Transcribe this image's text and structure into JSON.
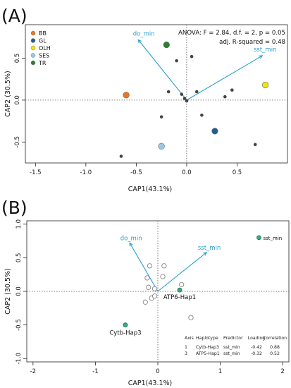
{
  "chart_data": [
    {
      "panel_label": "(A)",
      "type": "scatter",
      "xlabel": "CAP1(43.1%)",
      "ylabel": "CAP2 (30.5%)",
      "xlim": [
        -1.6,
        1.0
      ],
      "ylim": [
        -0.75,
        0.9
      ],
      "xticks": [
        -1.5,
        -1.0,
        -0.5,
        0.0,
        0.5
      ],
      "xtick_labels": [
        "-1.5",
        "-1.0",
        "-0.5",
        "0.0",
        "0.5"
      ],
      "yticks": [
        -0.5,
        0.0,
        0.5
      ],
      "ytick_labels": [
        "-0.5",
        "0.0",
        "0.5"
      ],
      "grid": false,
      "reference_lines": {
        "x": 0,
        "y": 0,
        "style": "dotted"
      },
      "annotation": [
        "ANOVA: F = 2.84, d.f. = 2, p = 0.05",
        "adj. R-squared = 0.48"
      ],
      "legend": {
        "position": "top-left",
        "entries": [
          {
            "label": "BB",
            "color": "#e87722"
          },
          {
            "label": "GL",
            "color": "#1f5f8b"
          },
          {
            "label": "OLH",
            "color": "#f3e600"
          },
          {
            "label": "SES",
            "color": "#9ec9de"
          },
          {
            "label": "TR",
            "color": "#2e7d32"
          }
        ]
      },
      "group_points": [
        {
          "group": "BB",
          "x": -0.6,
          "y": 0.06,
          "color": "#e87722"
        },
        {
          "group": "GL",
          "x": 0.28,
          "y": -0.37,
          "color": "#1f5f8b"
        },
        {
          "group": "OLH",
          "x": 0.78,
          "y": 0.18,
          "color": "#f3e600"
        },
        {
          "group": "SES",
          "x": -0.25,
          "y": -0.55,
          "color": "#9ec9de"
        },
        {
          "group": "TR",
          "x": -0.2,
          "y": 0.66,
          "color": "#2e7d32"
        }
      ],
      "samples": [
        {
          "x": -0.1,
          "y": 0.47
        },
        {
          "x": 0.05,
          "y": 0.52
        },
        {
          "x": -0.18,
          "y": 0.1
        },
        {
          "x": -0.05,
          "y": 0.07
        },
        {
          "x": -0.02,
          "y": 0.02
        },
        {
          "x": 0.0,
          "y": -0.01
        },
        {
          "x": 0.1,
          "y": 0.1
        },
        {
          "x": 0.45,
          "y": 0.12
        },
        {
          "x": 0.38,
          "y": 0.04
        },
        {
          "x": -0.25,
          "y": -0.2
        },
        {
          "x": 0.15,
          "y": -0.18
        },
        {
          "x": 0.68,
          "y": -0.53
        },
        {
          "x": -0.65,
          "y": -0.67
        }
      ],
      "vectors": [
        {
          "label": "do_min",
          "x": -0.48,
          "y": 0.72
        },
        {
          "label": "sst_min",
          "x": 0.75,
          "y": 0.53
        }
      ]
    },
    {
      "panel_label": "(B)",
      "type": "scatter",
      "xlabel": "CAP1(43.1%)",
      "ylabel": "CAP2 (30.5%)",
      "xlim": [
        -2.1,
        2.1
      ],
      "ylim": [
        -1.05,
        1.05
      ],
      "xticks": [
        -2,
        -1,
        0,
        1,
        2
      ],
      "xtick_labels": [
        "-2",
        "-1",
        "0",
        "1",
        "2"
      ],
      "yticks": [
        -1.0,
        -0.5,
        0.0,
        0.5,
        1.0
      ],
      "ytick_labels": [
        "-1.0",
        "-0.5",
        "0.0",
        "0.5",
        "1.0"
      ],
      "grid": false,
      "reference_lines": {
        "x": 0,
        "y": 0,
        "style": "dotted"
      },
      "samples": [
        {
          "x": -0.13,
          "y": 0.38
        },
        {
          "x": 0.1,
          "y": 0.38
        },
        {
          "x": 0.08,
          "y": 0.22
        },
        {
          "x": -0.17,
          "y": 0.2
        },
        {
          "x": -0.15,
          "y": 0.06
        },
        {
          "x": -0.05,
          "y": 0.04
        },
        {
          "x": 0.38,
          "y": 0.1
        },
        {
          "x": -0.1,
          "y": -0.1
        },
        {
          "x": -0.05,
          "y": -0.07
        },
        {
          "x": -0.2,
          "y": -0.16
        },
        {
          "x": 0.53,
          "y": -0.39
        }
      ],
      "highlighted_points": [
        {
          "label": "ATP6-Hap1",
          "x": 0.35,
          "y": 0.02,
          "color": "#3aaa8c"
        },
        {
          "label": "Cytb-Hap3",
          "x": -0.52,
          "y": -0.5,
          "color": "#3aaa8c"
        },
        {
          "label": "sst_min",
          "x": 1.62,
          "y": 0.8,
          "color": "#3aaa8c"
        }
      ],
      "vectors": [
        {
          "label": "do_min",
          "x": -0.45,
          "y": 0.72
        },
        {
          "label": "sst_min",
          "x": 0.78,
          "y": 0.58
        }
      ],
      "table": {
        "columns": [
          "Axis",
          "Haplotype",
          "Predictor",
          "Loading",
          "Correlation"
        ],
        "rows": [
          [
            "1",
            "Cytb-Hap3",
            "sst_min",
            "-0.42",
            "0.88"
          ],
          [
            "3",
            "ATP5-Hap1",
            "sst_min",
            "-0.32",
            "0.52"
          ]
        ]
      }
    }
  ]
}
